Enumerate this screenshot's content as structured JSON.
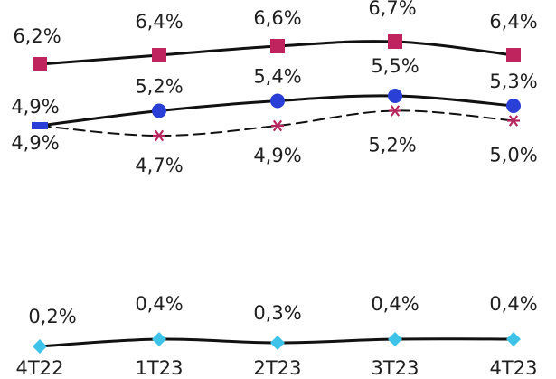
{
  "chart_data": {
    "type": "line",
    "categories": [
      "4T22",
      "1T23",
      "2T23",
      "3T23",
      "4T23"
    ],
    "ylim": [
      0,
      7
    ],
    "grid": false,
    "legend": "none",
    "series": [
      {
        "key": "top",
        "values": [
          6.2,
          6.4,
          6.6,
          6.7,
          6.4
        ],
        "labels": [
          "6,2%",
          "6,4%",
          "6,6%",
          "6,7%",
          "6,4%"
        ],
        "color": "#c0245f",
        "marker": "square",
        "line": "solid"
      },
      {
        "key": "mid",
        "values": [
          4.9,
          5.2,
          5.4,
          5.5,
          5.3
        ],
        "labels": [
          "4,9%",
          "5,2%",
          "5,4%",
          "5,5%",
          "5,3%"
        ],
        "color": "#2a3fd6",
        "marker": "circle",
        "line": "solid"
      },
      {
        "key": "dash",
        "values": [
          4.9,
          4.7,
          4.9,
          5.2,
          5.0
        ],
        "labels": [
          "4,9%",
          "4,7%",
          "4,9%",
          "5,2%",
          "5,0%"
        ],
        "color": "#b5265f",
        "marker": "asterisk",
        "line": "dashed"
      },
      {
        "key": "low",
        "values": [
          0.2,
          0.4,
          0.3,
          0.4,
          0.4
        ],
        "labels": [
          "0,2%",
          "0,4%",
          "0,3%",
          "0,4%",
          "0,4%"
        ],
        "color": "#3ec3e8",
        "marker": "diamond",
        "line": "solid"
      }
    ]
  }
}
